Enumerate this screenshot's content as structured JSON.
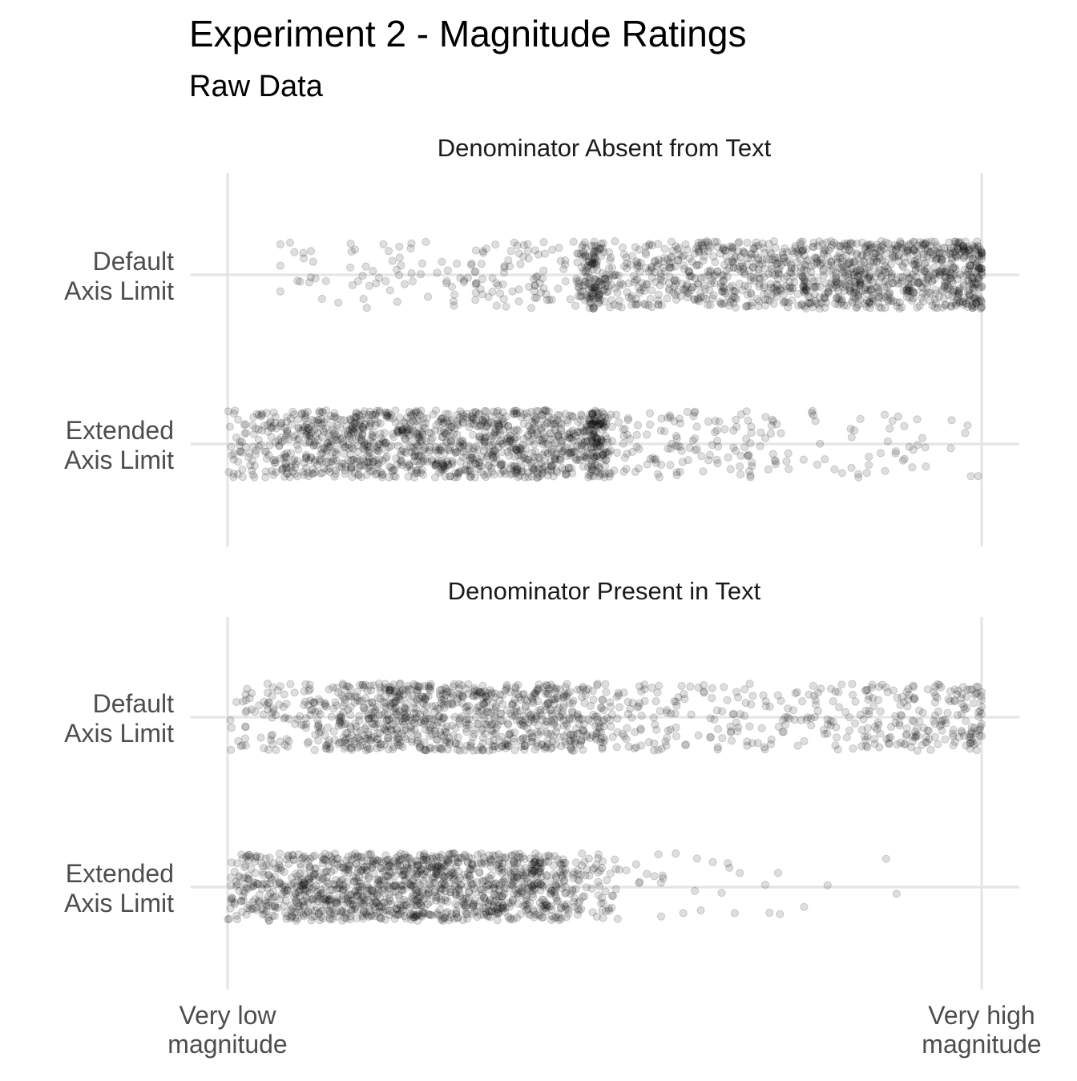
{
  "chart_data": {
    "type": "scatter",
    "title": "Experiment 2 - Magnitude Ratings",
    "subtitle": "Raw Data",
    "x_ticks": [
      {
        "value": 0,
        "label_lines": [
          "Very low",
          "magnitude"
        ]
      },
      {
        "value": 100,
        "label_lines": [
          "Very high",
          "magnitude"
        ]
      }
    ],
    "xlim": [
      0,
      100
    ],
    "grid": true,
    "legend": "none",
    "point_color": "#000000",
    "point_alpha": 0.15,
    "categories": [
      {
        "key": "default",
        "label_lines": [
          "Default",
          "Axis Limit"
        ]
      },
      {
        "key": "extended",
        "label_lines": [
          "Extended",
          "Axis Limit"
        ]
      }
    ],
    "facets": [
      {
        "title": "Denominator Absent from Text",
        "series": [
          {
            "category": "default",
            "x_range": [
              7,
              100
            ],
            "density_bins": [
              0.2,
              0.2,
              0.5,
              0.8,
              1.2,
              1.0,
              1.6,
              2.0,
              2.0,
              2.4,
              4.5,
              4.5,
              5.2,
              6.0,
              6.6,
              7.2,
              7.8,
              8.4,
              9.0,
              10.0
            ],
            "peaks": [
              {
                "x": 48.5,
                "weight": 5.0
              },
              {
                "x": 99.5,
                "weight": 3.0
              }
            ],
            "n_points": 1450
          },
          {
            "category": "extended",
            "x_range": [
              0,
              100
            ],
            "density_bins": [
              4.0,
              7.0,
              10.0,
              10.0,
              10.0,
              10.0,
              10.0,
              10.0,
              10.0,
              10.0,
              3.0,
              2.2,
              2.0,
              1.6,
              1.2,
              0.9,
              0.8,
              0.6,
              0.5,
              0.5
            ],
            "peaks": [
              {
                "x": 49.0,
                "weight": 6.0
              }
            ],
            "n_points": 1450
          }
        ]
      },
      {
        "title": "Denominator Present in Text",
        "series": [
          {
            "category": "default",
            "x_range": [
              0,
              100
            ],
            "density_bins": [
              3.0,
              4.0,
              5.0,
              9.0,
              10.0,
              10.0,
              10.0,
              10.0,
              9.0,
              8.5,
              3.0,
              2.4,
              2.0,
              1.8,
              1.8,
              2.0,
              3.2,
              4.0,
              5.0,
              6.0
            ],
            "peaks": [
              {
                "x": 99.5,
                "weight": 1.5
              }
            ],
            "n_points": 1300
          },
          {
            "category": "extended",
            "x_range": [
              0,
              90
            ],
            "density_bins": [
              6.0,
              8.0,
              10.0,
              10.0,
              10.0,
              10.0,
              10.0,
              10.0,
              9.5,
              3.5,
              1.2,
              0.5,
              0.4,
              0.4,
              0.3,
              0.2,
              0.1,
              0.1,
              0.0,
              0.0
            ],
            "peaks": [],
            "n_points": 1350
          }
        ]
      }
    ]
  }
}
